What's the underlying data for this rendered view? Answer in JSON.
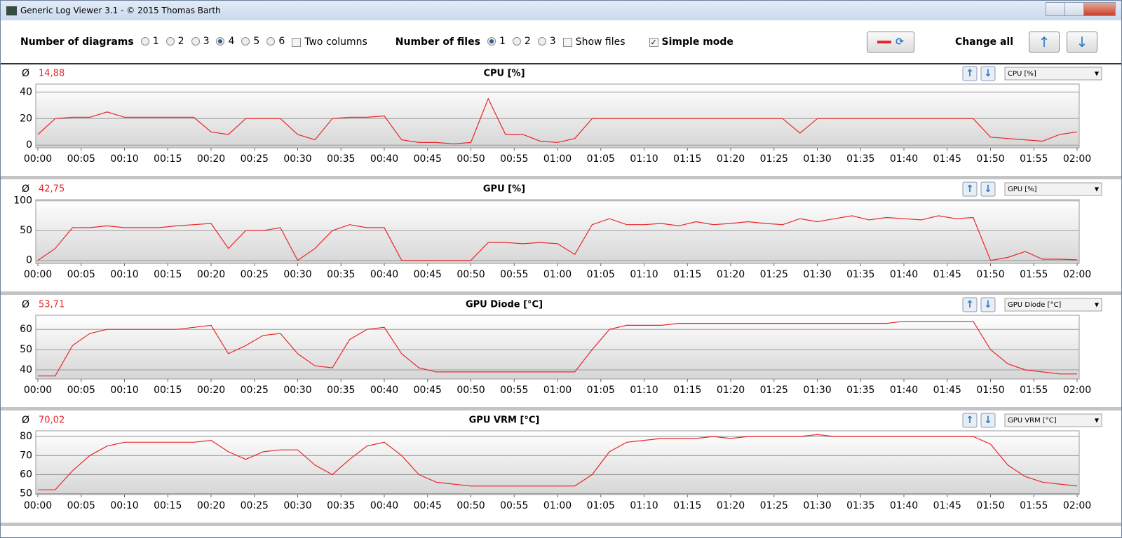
{
  "window": {
    "title": "Generic Log Viewer 3.1 - © 2015 Thomas Barth"
  },
  "toolbar": {
    "diagrams_label": "Number of diagrams",
    "diagram_options": [
      {
        "label": "1",
        "checked": false
      },
      {
        "label": "2",
        "checked": false
      },
      {
        "label": "3",
        "checked": false
      },
      {
        "label": "4",
        "checked": true
      },
      {
        "label": "5",
        "checked": false
      },
      {
        "label": "6",
        "checked": false
      }
    ],
    "two_columns": {
      "label": "Two columns",
      "checked": false
    },
    "files_label": "Number of files",
    "file_options": [
      {
        "label": "1",
        "checked": true
      },
      {
        "label": "2",
        "checked": false
      },
      {
        "label": "3",
        "checked": false
      }
    ],
    "show_files": {
      "label": "Show files",
      "checked": false
    },
    "simple_mode": {
      "label": "Simple mode",
      "checked": true
    },
    "change_all": "Change all"
  },
  "chart_data": [
    {
      "type": "line",
      "title": "CPU [%]",
      "average": {
        "value": 14.88,
        "label": "14,88"
      },
      "selector": "CPU [%]",
      "color": "#e8262a",
      "grid": true,
      "x": [
        0,
        2,
        4,
        6,
        8,
        10,
        12,
        14,
        16,
        18,
        20,
        22,
        24,
        26,
        28,
        30,
        32,
        34,
        36,
        38,
        40,
        42,
        44,
        46,
        48,
        50,
        52,
        54,
        56,
        58,
        60,
        62,
        64,
        66,
        68,
        70,
        72,
        74,
        76,
        78,
        80,
        82,
        84,
        86,
        88,
        90,
        92,
        94,
        96,
        98,
        100,
        102,
        104,
        106,
        108,
        110,
        112,
        114,
        116,
        118,
        120
      ],
      "values": [
        8,
        20,
        21,
        21,
        25,
        21,
        21,
        21,
        21,
        21,
        10,
        8,
        20,
        20,
        20,
        8,
        4,
        20,
        21,
        21,
        22,
        4,
        2,
        2,
        1,
        2,
        35,
        8,
        8,
        3,
        2,
        5,
        20,
        20,
        20,
        20,
        20,
        20,
        20,
        20,
        20,
        20,
        20,
        20,
        9,
        20,
        20,
        20,
        20,
        20,
        20,
        20,
        20,
        20,
        20,
        6,
        5,
        4,
        3,
        8,
        10
      ],
      "xlim": [
        0,
        120
      ],
      "ylim": [
        -2,
        46
      ],
      "yticks": [
        0,
        20,
        40
      ],
      "xticks": [
        {
          "value": 0,
          "label": "00:00"
        },
        {
          "value": 5,
          "label": "00:05"
        },
        {
          "value": 10,
          "label": "00:10"
        },
        {
          "value": 15,
          "label": "00:15"
        },
        {
          "value": 20,
          "label": "00:20"
        },
        {
          "value": 25,
          "label": "00:25"
        },
        {
          "value": 30,
          "label": "00:30"
        },
        {
          "value": 35,
          "label": "00:35"
        },
        {
          "value": 40,
          "label": "00:40"
        },
        {
          "value": 45,
          "label": "00:45"
        },
        {
          "value": 50,
          "label": "00:50"
        },
        {
          "value": 55,
          "label": "00:55"
        },
        {
          "value": 60,
          "label": "01:00"
        },
        {
          "value": 65,
          "label": "01:05"
        },
        {
          "value": 70,
          "label": "01:10"
        },
        {
          "value": 75,
          "label": "01:15"
        },
        {
          "value": 80,
          "label": "01:20"
        },
        {
          "value": 85,
          "label": "01:25"
        },
        {
          "value": 90,
          "label": "01:30"
        },
        {
          "value": 95,
          "label": "01:35"
        },
        {
          "value": 100,
          "label": "01:40"
        },
        {
          "value": 105,
          "label": "01:45"
        },
        {
          "value": 110,
          "label": "01:50"
        },
        {
          "value": 115,
          "label": "01:55"
        },
        {
          "value": 120,
          "label": "02:00"
        }
      ]
    },
    {
      "type": "line",
      "title": "GPU [%]",
      "average": {
        "value": 42.75,
        "label": "42,75"
      },
      "selector": "GPU [%]",
      "color": "#e8262a",
      "grid": true,
      "x": [
        0,
        2,
        4,
        6,
        8,
        10,
        12,
        14,
        16,
        18,
        20,
        22,
        24,
        26,
        28,
        30,
        32,
        34,
        36,
        38,
        40,
        42,
        44,
        46,
        48,
        50,
        52,
        54,
        56,
        58,
        60,
        62,
        64,
        66,
        68,
        70,
        72,
        74,
        76,
        78,
        80,
        82,
        84,
        86,
        88,
        90,
        92,
        94,
        96,
        98,
        100,
        102,
        104,
        106,
        108,
        110,
        112,
        114,
        116,
        118,
        120
      ],
      "values": [
        0,
        20,
        55,
        55,
        58,
        55,
        55,
        55,
        58,
        60,
        62,
        20,
        50,
        50,
        55,
        0,
        20,
        50,
        60,
        55,
        55,
        0,
        0,
        0,
        0,
        0,
        30,
        30,
        28,
        30,
        28,
        10,
        60,
        70,
        60,
        60,
        62,
        58,
        65,
        60,
        62,
        65,
        62,
        60,
        70,
        65,
        70,
        75,
        68,
        72,
        70,
        68,
        75,
        70,
        72,
        0,
        5,
        15,
        2,
        2,
        1
      ],
      "xlim": [
        0,
        120
      ],
      "ylim": [
        -5,
        102
      ],
      "yticks": [
        0,
        50,
        100
      ],
      "xticks": [
        {
          "value": 0,
          "label": "00:00"
        },
        {
          "value": 5,
          "label": "00:05"
        },
        {
          "value": 10,
          "label": "00:10"
        },
        {
          "value": 15,
          "label": "00:15"
        },
        {
          "value": 20,
          "label": "00:20"
        },
        {
          "value": 25,
          "label": "00:25"
        },
        {
          "value": 30,
          "label": "00:30"
        },
        {
          "value": 35,
          "label": "00:35"
        },
        {
          "value": 40,
          "label": "00:40"
        },
        {
          "value": 45,
          "label": "00:45"
        },
        {
          "value": 50,
          "label": "00:50"
        },
        {
          "value": 55,
          "label": "00:55"
        },
        {
          "value": 60,
          "label": "01:00"
        },
        {
          "value": 65,
          "label": "01:05"
        },
        {
          "value": 70,
          "label": "01:10"
        },
        {
          "value": 75,
          "label": "01:15"
        },
        {
          "value": 80,
          "label": "01:20"
        },
        {
          "value": 85,
          "label": "01:25"
        },
        {
          "value": 90,
          "label": "01:30"
        },
        {
          "value": 95,
          "label": "01:35"
        },
        {
          "value": 100,
          "label": "01:40"
        },
        {
          "value": 105,
          "label": "01:45"
        },
        {
          "value": 110,
          "label": "01:50"
        },
        {
          "value": 115,
          "label": "01:55"
        },
        {
          "value": 120,
          "label": "02:00"
        }
      ]
    },
    {
      "type": "line",
      "title": "GPU Diode [°C]",
      "average": {
        "value": 53.71,
        "label": "53,71"
      },
      "selector": "GPU Diode [°C]",
      "color": "#e8262a",
      "grid": true,
      "x": [
        0,
        2,
        4,
        6,
        8,
        10,
        12,
        14,
        16,
        18,
        20,
        22,
        24,
        26,
        28,
        30,
        32,
        34,
        36,
        38,
        40,
        42,
        44,
        46,
        48,
        50,
        52,
        54,
        56,
        58,
        60,
        62,
        64,
        66,
        68,
        70,
        72,
        74,
        76,
        78,
        80,
        82,
        84,
        86,
        88,
        90,
        92,
        94,
        96,
        98,
        100,
        102,
        104,
        106,
        108,
        110,
        112,
        114,
        116,
        118,
        120
      ],
      "values": [
        37,
        37,
        52,
        58,
        60,
        60,
        60,
        60,
        60,
        61,
        62,
        48,
        52,
        57,
        58,
        48,
        42,
        41,
        55,
        60,
        61,
        48,
        41,
        39,
        39,
        39,
        39,
        39,
        39,
        39,
        39,
        39,
        50,
        60,
        62,
        62,
        62,
        63,
        63,
        63,
        63,
        63,
        63,
        63,
        63,
        63,
        63,
        63,
        63,
        63,
        64,
        64,
        64,
        64,
        64,
        50,
        43,
        40,
        39,
        38,
        38
      ],
      "xlim": [
        0,
        120
      ],
      "ylim": [
        35.5,
        67
      ],
      "yticks": [
        40,
        50,
        60
      ],
      "xticks": [
        {
          "value": 0,
          "label": "00:00"
        },
        {
          "value": 5,
          "label": "00:05"
        },
        {
          "value": 10,
          "label": "00:10"
        },
        {
          "value": 15,
          "label": "00:15"
        },
        {
          "value": 20,
          "label": "00:20"
        },
        {
          "value": 25,
          "label": "00:25"
        },
        {
          "value": 30,
          "label": "00:30"
        },
        {
          "value": 35,
          "label": "00:35"
        },
        {
          "value": 40,
          "label": "00:40"
        },
        {
          "value": 45,
          "label": "00:45"
        },
        {
          "value": 50,
          "label": "00:50"
        },
        {
          "value": 55,
          "label": "00:55"
        },
        {
          "value": 60,
          "label": "01:00"
        },
        {
          "value": 65,
          "label": "01:05"
        },
        {
          "value": 70,
          "label": "01:10"
        },
        {
          "value": 75,
          "label": "01:15"
        },
        {
          "value": 80,
          "label": "01:20"
        },
        {
          "value": 85,
          "label": "01:25"
        },
        {
          "value": 90,
          "label": "01:30"
        },
        {
          "value": 95,
          "label": "01:35"
        },
        {
          "value": 100,
          "label": "01:40"
        },
        {
          "value": 105,
          "label": "01:45"
        },
        {
          "value": 110,
          "label": "01:50"
        },
        {
          "value": 115,
          "label": "01:55"
        },
        {
          "value": 120,
          "label": "02:00"
        }
      ]
    },
    {
      "type": "line",
      "title": "GPU VRM [°C]",
      "average": {
        "value": 70.02,
        "label": "70,02"
      },
      "selector": "GPU VRM [°C]",
      "color": "#e8262a",
      "grid": true,
      "x": [
        0,
        2,
        4,
        6,
        8,
        10,
        12,
        14,
        16,
        18,
        20,
        22,
        24,
        26,
        28,
        30,
        32,
        34,
        36,
        38,
        40,
        42,
        44,
        46,
        48,
        50,
        52,
        54,
        56,
        58,
        60,
        62,
        64,
        66,
        68,
        70,
        72,
        74,
        76,
        78,
        80,
        82,
        84,
        86,
        88,
        90,
        92,
        94,
        96,
        98,
        100,
        102,
        104,
        106,
        108,
        110,
        112,
        114,
        116,
        118,
        120
      ],
      "values": [
        52,
        52,
        62,
        70,
        75,
        77,
        77,
        77,
        77,
        77,
        78,
        72,
        68,
        72,
        73,
        73,
        65,
        60,
        68,
        75,
        77,
        70,
        60,
        56,
        55,
        54,
        54,
        54,
        54,
        54,
        54,
        54,
        60,
        72,
        77,
        78,
        79,
        79,
        79,
        80,
        79,
        80,
        80,
        80,
        80,
        81,
        80,
        80,
        80,
        80,
        80,
        80,
        80,
        80,
        80,
        76,
        65,
        59,
        56,
        55,
        54
      ],
      "xlim": [
        0,
        120
      ],
      "ylim": [
        49.5,
        83
      ],
      "yticks": [
        50,
        60,
        70,
        80
      ],
      "xticks": [
        {
          "value": 0,
          "label": "00:00"
        },
        {
          "value": 5,
          "label": "00:05"
        },
        {
          "value": 10,
          "label": "00:10"
        },
        {
          "value": 15,
          "label": "00:15"
        },
        {
          "value": 20,
          "label": "00:20"
        },
        {
          "value": 25,
          "label": "00:25"
        },
        {
          "value": 30,
          "label": "00:30"
        },
        {
          "value": 35,
          "label": "00:35"
        },
        {
          "value": 40,
          "label": "00:40"
        },
        {
          "value": 45,
          "label": "00:45"
        },
        {
          "value": 50,
          "label": "00:50"
        },
        {
          "value": 55,
          "label": "00:55"
        },
        {
          "value": 60,
          "label": "01:00"
        },
        {
          "value": 65,
          "label": "01:05"
        },
        {
          "value": 70,
          "label": "01:10"
        },
        {
          "value": 75,
          "label": "01:15"
        },
        {
          "value": 80,
          "label": "01:20"
        },
        {
          "value": 85,
          "label": "01:25"
        },
        {
          "value": 90,
          "label": "01:30"
        },
        {
          "value": 95,
          "label": "01:35"
        },
        {
          "value": 100,
          "label": "01:40"
        },
        {
          "value": 105,
          "label": "01:45"
        },
        {
          "value": 110,
          "label": "01:50"
        },
        {
          "value": 115,
          "label": "01:55"
        },
        {
          "value": 120,
          "label": "02:00"
        }
      ]
    }
  ]
}
